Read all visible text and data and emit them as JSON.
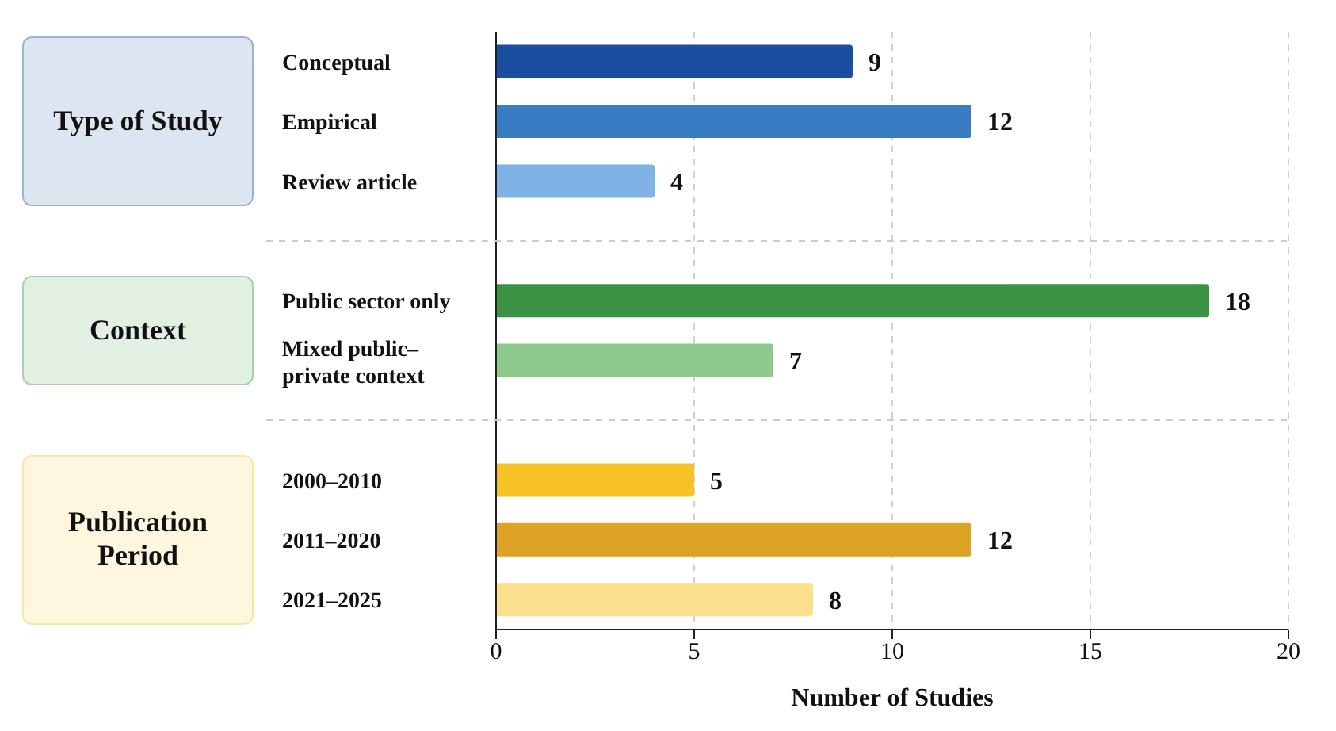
{
  "chart_data": {
    "type": "bar",
    "orientation": "horizontal",
    "xlabel": "Number of Studies",
    "categories": [
      "Conceptual",
      "Empirical",
      "Review article",
      null,
      "Public sector only",
      "Mixed public–private context",
      null,
      "2000–2010",
      "2011–2020",
      "2021–2025"
    ],
    "values": [
      9,
      12,
      4,
      null,
      18,
      7,
      null,
      5,
      12,
      8
    ],
    "colors": [
      "#1a4fa0",
      "#3a7cc4",
      "#7fb2e5",
      null,
      "#3a9444",
      "#8cc98a",
      null,
      "#f7c225",
      "#dca324",
      "#fde08e"
    ],
    "annotations": [
      "Type of Study",
      "Context",
      "Publication Period"
    ],
    "xlim": [
      0,
      20
    ],
    "xticks": [
      0,
      5,
      10,
      15,
      20
    ],
    "grid": "x",
    "data_labels": true
  }
}
